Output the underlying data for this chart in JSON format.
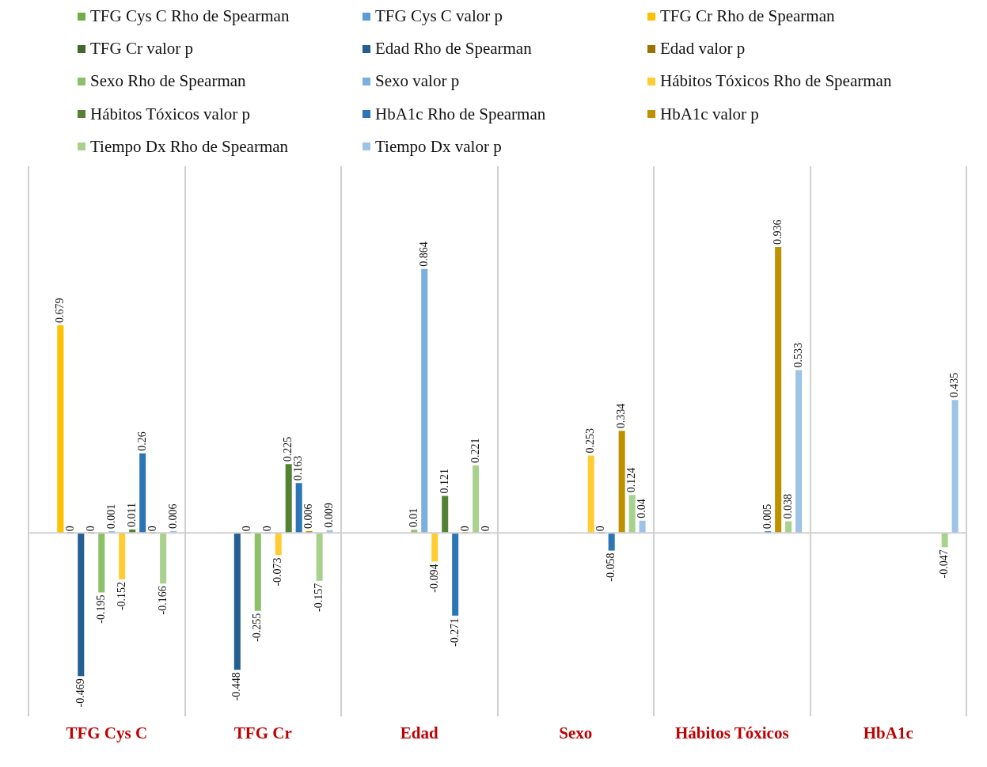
{
  "chart_data": {
    "type": "bar",
    "categories": [
      "TFG Cys C",
      "TFG Cr",
      "Edad",
      "Sexo",
      "Hábitos Tóxicos",
      "HbA1c"
    ],
    "series": [
      {
        "name": "TFG Cys C Rho de Spearman",
        "color": "#70ad47",
        "values": [
          null,
          null,
          null,
          null,
          null,
          null
        ]
      },
      {
        "name": "TFG Cys C valor p",
        "color": "#5b9bd5",
        "values": [
          null,
          null,
          null,
          null,
          null,
          null
        ]
      },
      {
        "name": "TFG Cr Rho de Spearman",
        "color": "#ffc000",
        "values": [
          0.679,
          null,
          null,
          null,
          null,
          null
        ]
      },
      {
        "name": "TFG Cr valor p",
        "color": "#43682b",
        "values": [
          0,
          null,
          null,
          null,
          null,
          null
        ]
      },
      {
        "name": "Edad Rho de Spearman",
        "color": "#255e91",
        "values": [
          -0.469,
          -0.448,
          null,
          null,
          null,
          null
        ]
      },
      {
        "name": "Edad valor p",
        "color": "#997300",
        "values": [
          0,
          0,
          null,
          null,
          null,
          null
        ]
      },
      {
        "name": "Sexo Rho de Spearman",
        "color": "#8cc168",
        "values": [
          -0.195,
          -0.255,
          0.01,
          null,
          null,
          null
        ]
      },
      {
        "name": "Sexo valor p",
        "color": "#7cafdd",
        "values": [
          0.001,
          0,
          0.864,
          null,
          null,
          null
        ]
      },
      {
        "name": "Hábitos Tóxicos Rho de Spearman",
        "color": "#ffcd33",
        "values": [
          -0.152,
          -0.073,
          -0.094,
          0.253,
          null,
          null
        ]
      },
      {
        "name": "Hábitos Tóxicos valor p",
        "color": "#548235",
        "values": [
          0.011,
          0.225,
          0.121,
          0,
          null,
          null
        ]
      },
      {
        "name": "HbA1c Rho de Spearman",
        "color": "#2e75b6",
        "values": [
          0.26,
          0.163,
          -0.271,
          -0.058,
          0.005,
          null
        ]
      },
      {
        "name": "HbA1c valor p",
        "color": "#bf9000",
        "values": [
          0,
          0.006,
          0,
          0.334,
          0.936,
          null
        ]
      },
      {
        "name": "Tiempo Dx Rho de Spearman",
        "color": "#a9d18e",
        "values": [
          -0.166,
          -0.157,
          0.221,
          0.124,
          0.038,
          -0.047
        ]
      },
      {
        "name": "Tiempo Dx valor p",
        "color": "#9dc3e6",
        "values": [
          0.006,
          0.009,
          0,
          0.04,
          0.533,
          0.435
        ]
      }
    ],
    "data_labels": true,
    "grid": "x",
    "legend": "top"
  }
}
